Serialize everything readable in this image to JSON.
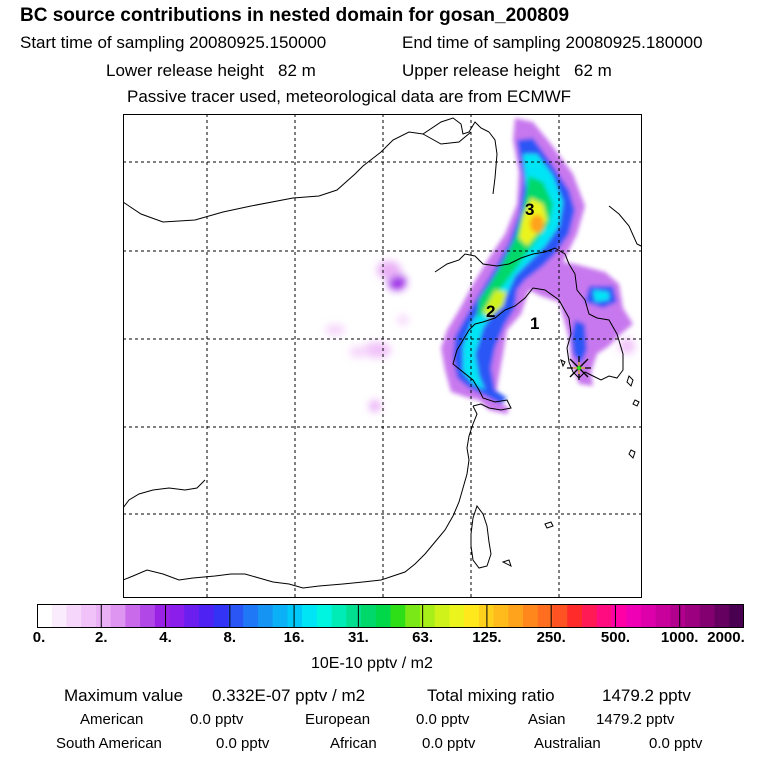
{
  "header": {
    "title": "BC  source contributions in nested domain for gosan_200809",
    "start_label": "Start time of sampling",
    "start_value": "20080925.150000",
    "end_label": "End time of sampling",
    "end_value": "20080925.180000",
    "lower_label": "Lower release height",
    "lower_value": "82 m",
    "upper_label": "Upper release height",
    "upper_value": "62 m",
    "note": "Passive tracer used, meteorological data are from ECMWF"
  },
  "map": {
    "labels": [
      "3",
      "2",
      "1"
    ],
    "receptor_marker": "star-burst-icon"
  },
  "colorbar": {
    "ticks": [
      "0.",
      "2.",
      "4.",
      "8.",
      "16.",
      "31.",
      "63.",
      "125.",
      "250.",
      "500.",
      "1000.",
      "2000."
    ],
    "colors": [
      "#ffffff",
      "#fbecfd",
      "#f6d7fb",
      "#f1c2f9",
      "#eab0f6",
      "#de95f1",
      "#c96aeb",
      "#b247e8",
      "#9a22e5",
      "#8c1eec",
      "#6a1fef",
      "#4d22f2",
      "#3333f5",
      "#2a56f6",
      "#1f78f5",
      "#1694f4",
      "#0cb0f6",
      "#00c8f8",
      "#00e5f5",
      "#00f5e0",
      "#00ecb6",
      "#00e090",
      "#00d86b",
      "#00d84a",
      "#2edf18",
      "#7ae816",
      "#a8ee18",
      "#cff21a",
      "#ebf41c",
      "#ffe81c",
      "#ffd11c",
      "#ffba1c",
      "#ffa31c",
      "#ff871c",
      "#ff6e1f",
      "#ff5223",
      "#ff2a2a",
      "#ff1a55",
      "#ff0d80",
      "#ff00a6",
      "#f000b4",
      "#dd00aa",
      "#c8009c",
      "#b2008e",
      "#9c0080",
      "#820070",
      "#660060",
      "#4a0050"
    ],
    "units": "10E-10 pptv / m2"
  },
  "stats": {
    "max_label": "Maximum value",
    "max_value": "0.332E-07 pptv / m2",
    "total_label": "Total mixing ratio",
    "total_value": "1479.2 pptv",
    "american_label": "American",
    "american_value": "0.0 pptv",
    "european_label": "European",
    "european_value": "0.0 pptv",
    "asian_label": "Asian",
    "asian_value": "1479.2 pptv",
    "southamerican_label": "South American",
    "southamerican_value": "0.0 pptv",
    "african_label": "African",
    "african_value": "0.0 pptv",
    "australian_label": "Australian",
    "australian_value": "0.0 pptv"
  }
}
